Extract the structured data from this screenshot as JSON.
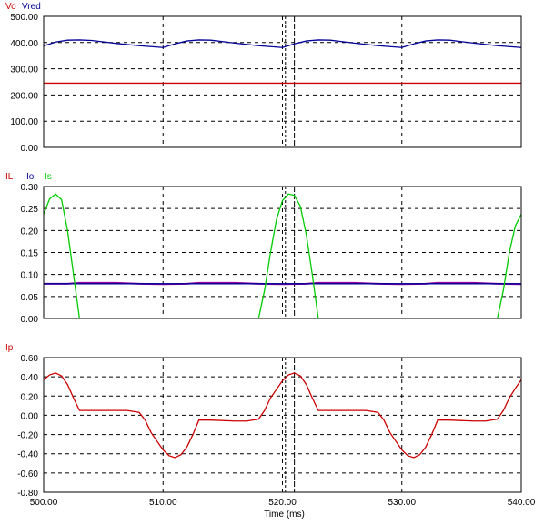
{
  "window": {
    "background": "#ffffff"
  },
  "x_axis": {
    "label": "Time (ms)",
    "ticks": [
      "500.00",
      "510.00",
      "520.00",
      "530.00",
      "540.00"
    ],
    "range": [
      500,
      540
    ]
  },
  "cursors_ms": [
    520.25,
    521.0
  ],
  "chart_data": [
    {
      "type": "line",
      "legend": [
        {
          "label": "Vo",
          "color": "#cc0000"
        },
        {
          "label": "Vred",
          "color": "#000099"
        }
      ],
      "ylim": [
        0,
        500
      ],
      "yticks": [
        "0.00",
        "100.00",
        "200.00",
        "300.00",
        "400.00",
        "500.00"
      ],
      "series": [
        {
          "name": "Vo",
          "color": "#cc0000",
          "x": [
            500,
            540
          ],
          "y": [
            245,
            245
          ]
        },
        {
          "name": "Vred",
          "color": "#000099",
          "x": [
            500,
            501,
            502,
            503,
            504,
            506,
            508,
            510,
            511,
            512,
            513,
            514,
            516,
            518,
            520,
            521,
            522,
            523,
            524,
            526,
            528,
            530,
            531,
            532,
            533,
            534,
            536,
            538,
            540
          ],
          "y": [
            387,
            402,
            409,
            410,
            408,
            397,
            388,
            381,
            395,
            406,
            410,
            409,
            398,
            388,
            381,
            395,
            406,
            410,
            409,
            398,
            388,
            381,
            395,
            406,
            410,
            409,
            398,
            388,
            381
          ]
        }
      ]
    },
    {
      "type": "line",
      "legend": [
        {
          "label": "IL",
          "color": "#cc0000"
        },
        {
          "label": "Io",
          "color": "#000099"
        },
        {
          "label": "Is",
          "color": "#00cc00"
        }
      ],
      "ylim": [
        0,
        0.3
      ],
      "yticks": [
        "0.00",
        "0.05",
        "0.10",
        "0.15",
        "0.20",
        "0.25",
        "0.30"
      ],
      "series": [
        {
          "name": "IL",
          "color": "#990099",
          "x": [
            500,
            502,
            503,
            506,
            508,
            510,
            512,
            513,
            516,
            518,
            520,
            522,
            523,
            526,
            528,
            530,
            532,
            533,
            536,
            538,
            540
          ],
          "y": [
            0.079,
            0.079,
            0.081,
            0.081,
            0.079,
            0.078,
            0.079,
            0.081,
            0.081,
            0.079,
            0.078,
            0.079,
            0.081,
            0.081,
            0.079,
            0.078,
            0.079,
            0.081,
            0.081,
            0.079,
            0.078
          ]
        },
        {
          "name": "Io",
          "color": "#000099",
          "x": [
            500,
            540
          ],
          "y": [
            0.079,
            0.079
          ]
        },
        {
          "name": "Is",
          "color": "#00cc00",
          "x": [
            500,
            500.5,
            501,
            501.5,
            502,
            502.5,
            503,
            503.01,
            517.99,
            518.0,
            518.5,
            519,
            519.5,
            520,
            520.5,
            521,
            521.5,
            522,
            522.5,
            523,
            523.01,
            537.99,
            538.0,
            538.5,
            539,
            539.5,
            540
          ],
          "y": [
            0.237,
            0.272,
            0.283,
            0.27,
            0.2,
            0.1,
            0.0,
            null,
            null,
            0.0,
            0.064,
            0.15,
            0.225,
            0.268,
            0.283,
            0.28,
            0.255,
            0.19,
            0.1,
            0.0,
            null,
            null,
            0.0,
            0.064,
            0.15,
            0.21,
            0.237
          ]
        }
      ]
    },
    {
      "type": "line",
      "legend": [
        {
          "label": "Ip",
          "color": "#cc0000"
        }
      ],
      "ylim": [
        -0.8,
        0.6
      ],
      "yticks": [
        "-0.80",
        "-0.60",
        "-0.40",
        "-0.20",
        "0.00",
        "0.20",
        "0.40",
        "0.60"
      ],
      "series": [
        {
          "name": "Ip",
          "color": "#cc0000",
          "x": [
            500,
            500.5,
            501,
            501.5,
            502,
            502.5,
            503,
            503.5,
            504,
            506,
            507,
            508,
            508.5,
            509,
            510,
            510.5,
            511,
            511.5,
            512,
            512.5,
            513,
            513.5,
            514,
            516,
            517,
            518,
            518.5,
            519,
            520,
            520.5,
            521,
            521.5,
            522,
            522.5,
            523,
            523.5,
            524,
            526,
            527,
            528,
            528.5,
            529,
            530,
            530.5,
            531,
            531.5,
            532,
            532.5,
            533,
            533.5,
            534,
            536,
            537,
            538,
            538.5,
            539,
            539.5,
            540
          ],
          "y": [
            0.37,
            0.42,
            0.44,
            0.41,
            0.32,
            0.18,
            0.05,
            0.05,
            0.05,
            0.05,
            0.05,
            0.03,
            -0.05,
            -0.18,
            -0.36,
            -0.42,
            -0.44,
            -0.41,
            -0.33,
            -0.2,
            -0.05,
            -0.05,
            -0.05,
            -0.06,
            -0.06,
            -0.04,
            0.05,
            0.18,
            0.36,
            0.42,
            0.44,
            0.41,
            0.32,
            0.18,
            0.05,
            0.05,
            0.05,
            0.05,
            0.05,
            0.03,
            -0.05,
            -0.18,
            -0.36,
            -0.42,
            -0.44,
            -0.41,
            -0.33,
            -0.2,
            -0.05,
            -0.05,
            -0.05,
            -0.06,
            -0.06,
            -0.04,
            0.05,
            0.18,
            0.28,
            0.37
          ]
        }
      ]
    }
  ]
}
